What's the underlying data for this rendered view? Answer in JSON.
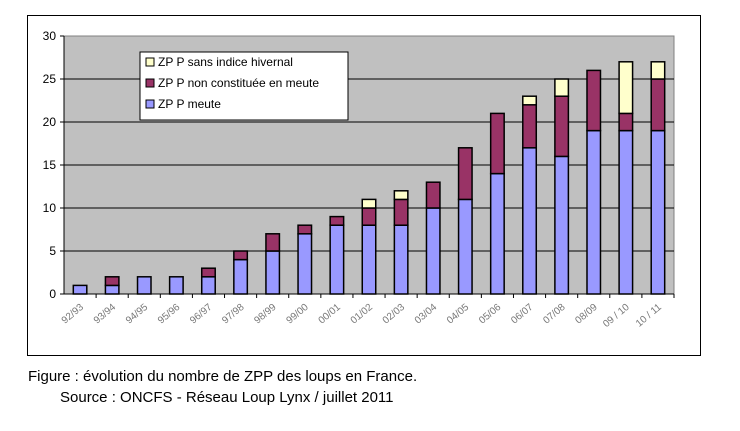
{
  "chart_data": {
    "type": "bar",
    "stacked": true,
    "categories": [
      "92/93",
      "93/94",
      "94/95",
      "95/96",
      "96/97",
      "97/98",
      "98/99",
      "99/00",
      "00/01",
      "01/02",
      "02/03",
      "03/04",
      "04/05",
      "05/06",
      "06/07",
      "07/08",
      "08/09",
      "09 / 10",
      "10 / 11"
    ],
    "series": [
      {
        "name": "ZP P meute",
        "color": "#9999ff",
        "values": [
          1,
          1,
          2,
          2,
          2,
          4,
          5,
          7,
          8,
          8,
          8,
          10,
          11,
          14,
          17,
          16,
          19,
          19,
          19
        ]
      },
      {
        "name": "ZP P non constituée en meute",
        "color": "#993366",
        "values": [
          0,
          1,
          0,
          0,
          1,
          1,
          2,
          1,
          1,
          2,
          3,
          3,
          6,
          7,
          5,
          7,
          7,
          2,
          6
        ]
      },
      {
        "name": "ZP P sans indice hivernal",
        "color": "#ffffcc",
        "values": [
          0,
          0,
          0,
          0,
          0,
          0,
          0,
          0,
          0,
          1,
          1,
          0,
          0,
          0,
          1,
          2,
          0,
          6,
          2
        ]
      }
    ],
    "ylim": [
      0,
      30
    ],
    "yticks": [
      0,
      5,
      10,
      15,
      20,
      25,
      30
    ],
    "grid": true,
    "plot_background": "#c0c0c0",
    "legend_placement": "top-left"
  },
  "caption": {
    "line1": "Figure : évolution du nombre de ZPP des loups en France.",
    "line2": "Source : ONCFS - Réseau Loup Lynx / juillet 2011"
  }
}
